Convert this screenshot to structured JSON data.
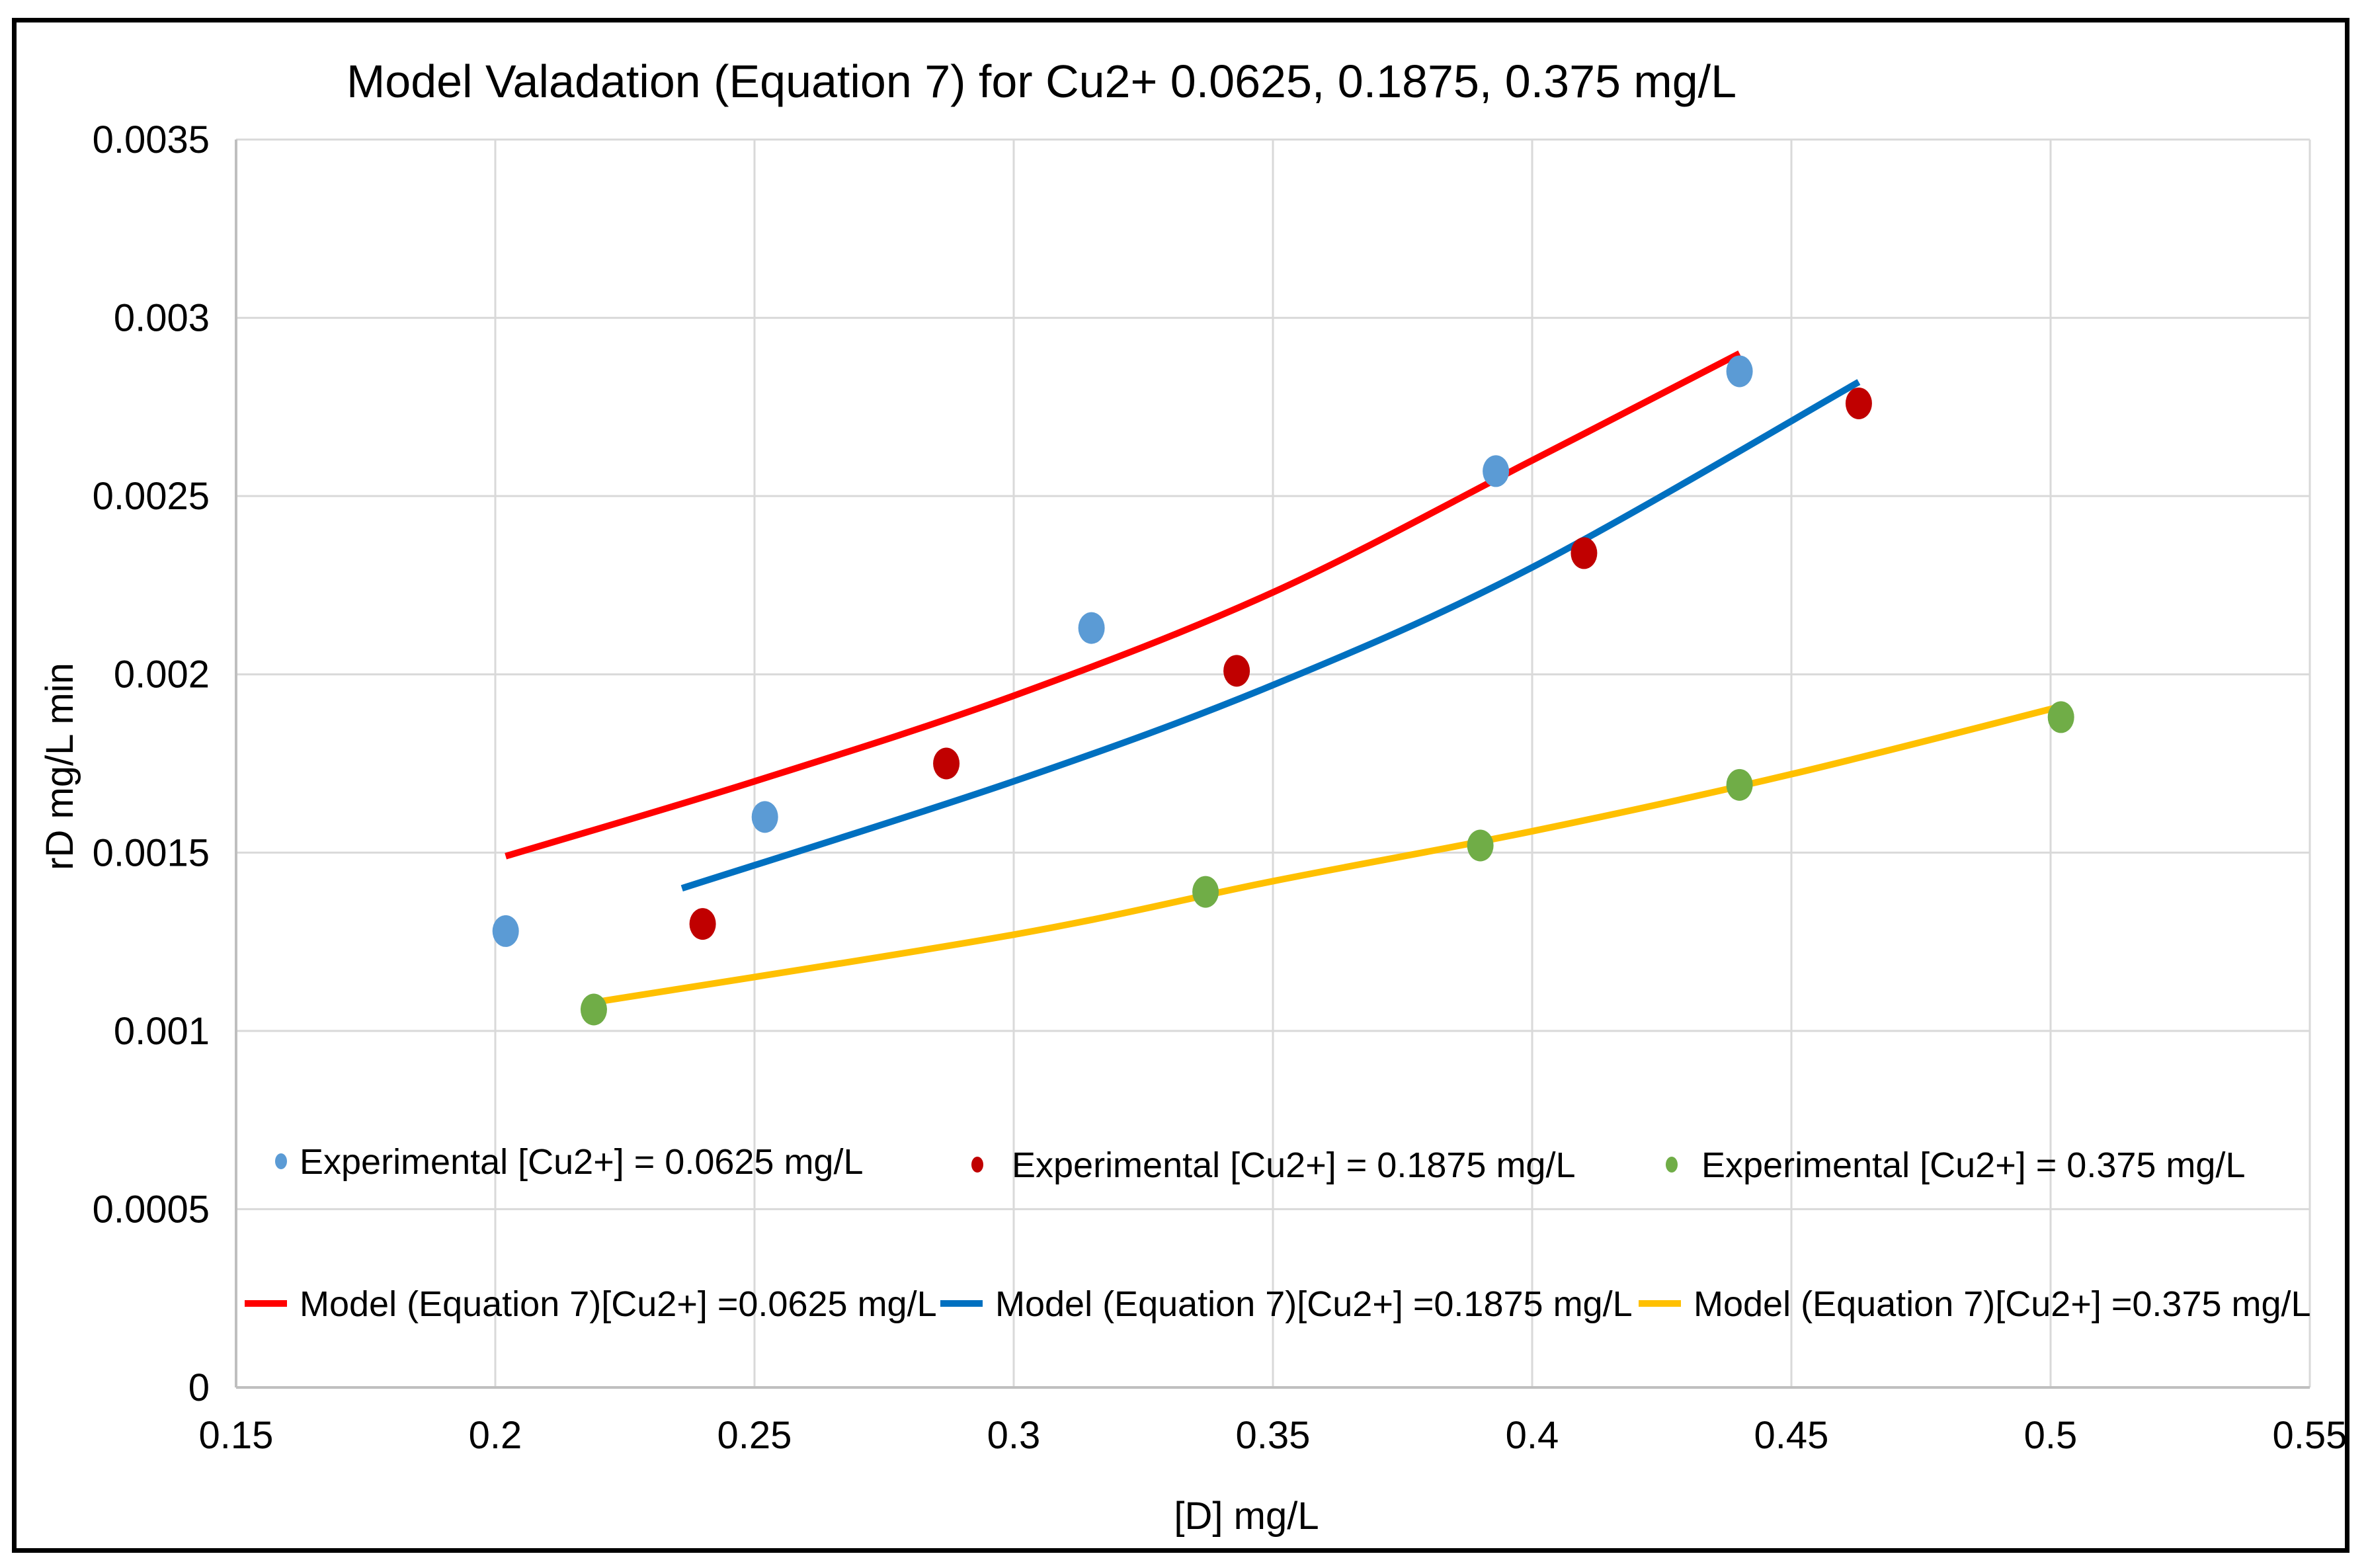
{
  "chart_data": {
    "type": "scatter",
    "title": "Model Valadation (Equation  7) for Cu2+ 0.0625, 0.1875, 0.375 mg/L",
    "xlabel": "[D] mg/L",
    "ylabel": "rD mg/L min",
    "xlim": [
      0.15,
      0.55
    ],
    "ylim": [
      0,
      0.0035
    ],
    "xticks": [
      0.15,
      0.2,
      0.25,
      0.3,
      0.35,
      0.4,
      0.45,
      0.5,
      0.55
    ],
    "xtick_labels": [
      "0.15",
      "0.2",
      "0.25",
      "0.3",
      "0.35",
      "0.4",
      "0.45",
      "0.5",
      "0.55"
    ],
    "yticks": [
      0,
      0.0005,
      0.001,
      0.0015,
      0.002,
      0.0025,
      0.003,
      0.0035
    ],
    "ytick_labels": [
      "0",
      "0.0005",
      "0.001",
      "0.0015",
      "0.002",
      "0.0025",
      "0.003",
      "0.0035"
    ],
    "grid": true,
    "legend_position": "inside-bottom",
    "series": [
      {
        "name": "Experimental [Cu2+] = 0.0625 mg/L",
        "kind": "points",
        "color": "#5B9BD5",
        "x": [
          0.202,
          0.252,
          0.315,
          0.393,
          0.44
        ],
        "y": [
          0.00128,
          0.0016,
          0.00213,
          0.00257,
          0.00285
        ]
      },
      {
        "name": "Experimental [Cu2+] = 0.1875 mg/L",
        "kind": "points",
        "color": "#C00000",
        "x": [
          0.24,
          0.287,
          0.343,
          0.41,
          0.463
        ],
        "y": [
          0.0013,
          0.00175,
          0.00201,
          0.00234,
          0.00276
        ]
      },
      {
        "name": "Experimental [Cu2+] = 0.375 mg/L",
        "kind": "points",
        "color": "#70AD47",
        "x": [
          0.219,
          0.337,
          0.39,
          0.44,
          0.502
        ],
        "y": [
          0.00106,
          0.00139,
          0.00152,
          0.00169,
          0.00188
        ]
      },
      {
        "name": "Model  (Equation 7)[Cu2+] =0.0625 mg/L",
        "kind": "line",
        "color": "#FF0000",
        "x": [
          0.202,
          0.25,
          0.3,
          0.35,
          0.4,
          0.44
        ],
        "y": [
          0.00149,
          0.0017,
          0.00194,
          0.00223,
          0.0026,
          0.0029
        ]
      },
      {
        "name": "Model  (Equation 7)[Cu2+] =0.1875 mg/L",
        "kind": "line",
        "color": "#0070C0",
        "x": [
          0.236,
          0.3,
          0.35,
          0.4,
          0.463
        ],
        "y": [
          0.0014,
          0.0017,
          0.00197,
          0.0023,
          0.00282
        ]
      },
      {
        "name": "Model  (Equation 7)[Cu2+] =0.375 mg/L",
        "kind": "line",
        "color": "#FFC000",
        "x": [
          0.219,
          0.3,
          0.35,
          0.4,
          0.45,
          0.502
        ],
        "y": [
          0.00108,
          0.00127,
          0.00142,
          0.00156,
          0.00172,
          0.00191
        ]
      }
    ]
  }
}
